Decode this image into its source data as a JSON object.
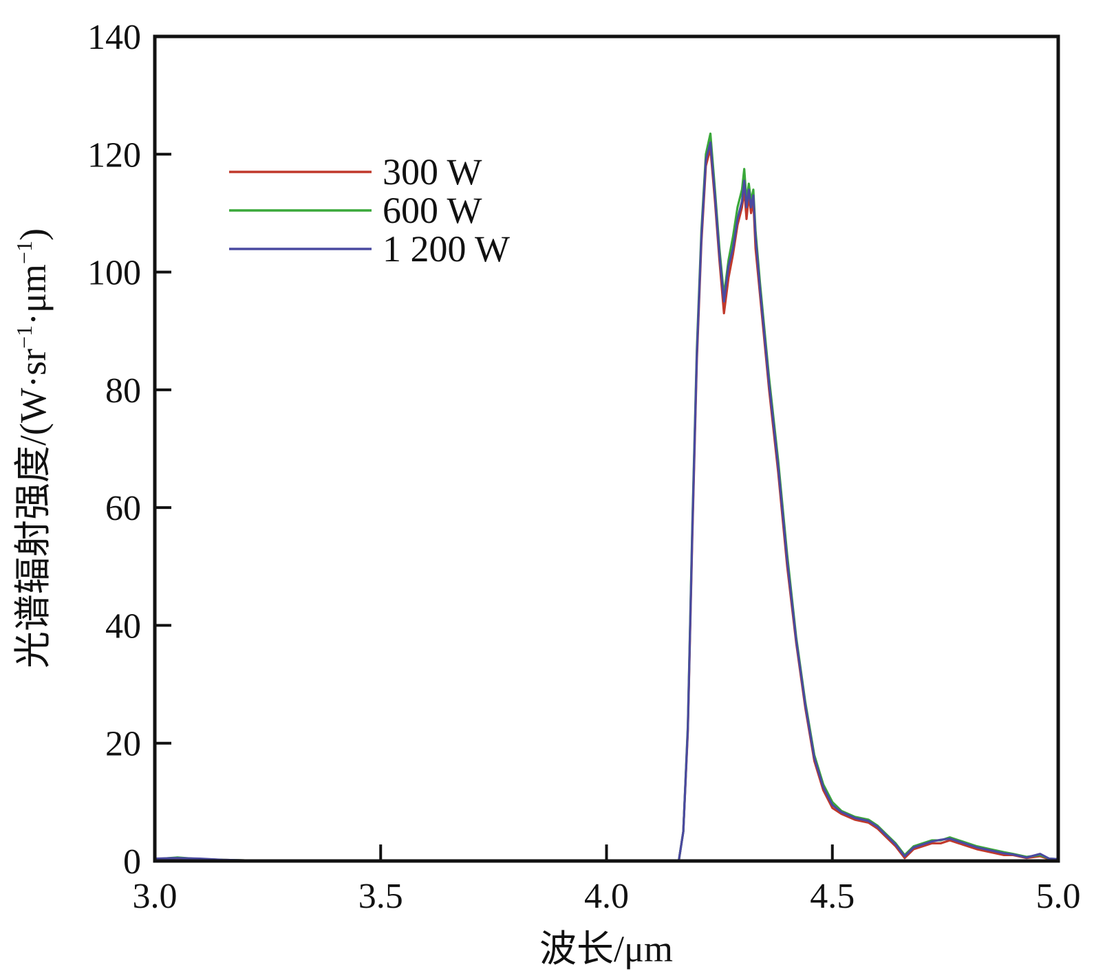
{
  "chart_data": {
    "type": "line",
    "title": "",
    "xlabel": "波长/μm",
    "ylabel": {
      "prefix": "光谱辐射强度/(W·sr",
      "sup1": "−1",
      "mid": "·μm",
      "sup2": "−1",
      "suffix": ")"
    },
    "xlim": [
      3.0,
      5.0
    ],
    "ylim": [
      0,
      140
    ],
    "xticks": [
      3.0,
      3.5,
      4.0,
      4.5,
      5.0
    ],
    "xtick_labels": [
      "3.0",
      "3.5",
      "4.0",
      "4.5",
      "5.0"
    ],
    "yticks": [
      0,
      20,
      40,
      60,
      80,
      100,
      120,
      140
    ],
    "ytick_labels": [
      "0",
      "20",
      "40",
      "60",
      "80",
      "100",
      "120",
      "140"
    ],
    "grid": false,
    "legend": {
      "position": "top-left"
    },
    "series": [
      {
        "name": "300 W",
        "color": "#c0392b",
        "points": [
          [
            3.0,
            0.3
          ],
          [
            3.05,
            0.5
          ],
          [
            3.1,
            0.3
          ],
          [
            3.15,
            0.2
          ],
          [
            3.2,
            0.1
          ],
          [
            3.5,
            0.0
          ],
          [
            4.0,
            0.0
          ],
          [
            4.16,
            0.0
          ],
          [
            4.17,
            5
          ],
          [
            4.18,
            22
          ],
          [
            4.19,
            55
          ],
          [
            4.2,
            85
          ],
          [
            4.21,
            105
          ],
          [
            4.22,
            118
          ],
          [
            4.23,
            121
          ],
          [
            4.24,
            112
          ],
          [
            4.25,
            102
          ],
          [
            4.26,
            93
          ],
          [
            4.27,
            99
          ],
          [
            4.28,
            103
          ],
          [
            4.29,
            108
          ],
          [
            4.3,
            111
          ],
          [
            4.305,
            114
          ],
          [
            4.31,
            109
          ],
          [
            4.315,
            113
          ],
          [
            4.32,
            110
          ],
          [
            4.325,
            112
          ],
          [
            4.33,
            104
          ],
          [
            4.34,
            96
          ],
          [
            4.36,
            80
          ],
          [
            4.38,
            66
          ],
          [
            4.4,
            50
          ],
          [
            4.42,
            37
          ],
          [
            4.44,
            26
          ],
          [
            4.46,
            17
          ],
          [
            4.48,
            12
          ],
          [
            4.5,
            9
          ],
          [
            4.52,
            8
          ],
          [
            4.55,
            7
          ],
          [
            4.58,
            6.5
          ],
          [
            4.6,
            5.5
          ],
          [
            4.62,
            4
          ],
          [
            4.64,
            2.5
          ],
          [
            4.66,
            0.5
          ],
          [
            4.68,
            2
          ],
          [
            4.7,
            2.5
          ],
          [
            4.72,
            3
          ],
          [
            4.74,
            3
          ],
          [
            4.76,
            3.5
          ],
          [
            4.78,
            3
          ],
          [
            4.8,
            2.5
          ],
          [
            4.82,
            2
          ],
          [
            4.85,
            1.5
          ],
          [
            4.88,
            1
          ],
          [
            4.9,
            1
          ],
          [
            4.93,
            0.5
          ],
          [
            4.96,
            0.8
          ],
          [
            4.98,
            0.3
          ],
          [
            5.0,
            0.2
          ]
        ]
      },
      {
        "name": "600 W",
        "color": "#3aa83a",
        "points": [
          [
            3.0,
            0.3
          ],
          [
            3.05,
            0.6
          ],
          [
            3.1,
            0.3
          ],
          [
            3.15,
            0.2
          ],
          [
            3.2,
            0.1
          ],
          [
            3.5,
            0.0
          ],
          [
            4.0,
            0.0
          ],
          [
            4.16,
            0.0
          ],
          [
            4.17,
            5
          ],
          [
            4.18,
            23
          ],
          [
            4.19,
            57
          ],
          [
            4.2,
            87
          ],
          [
            4.21,
            107
          ],
          [
            4.22,
            120
          ],
          [
            4.23,
            123.5
          ],
          [
            4.24,
            114
          ],
          [
            4.25,
            104
          ],
          [
            4.26,
            96
          ],
          [
            4.27,
            102
          ],
          [
            4.28,
            106
          ],
          [
            4.29,
            111
          ],
          [
            4.3,
            114
          ],
          [
            4.305,
            117.5
          ],
          [
            4.31,
            112
          ],
          [
            4.315,
            115
          ],
          [
            4.32,
            112
          ],
          [
            4.325,
            114
          ],
          [
            4.33,
            107
          ],
          [
            4.34,
            98
          ],
          [
            4.36,
            82
          ],
          [
            4.38,
            68
          ],
          [
            4.4,
            52
          ],
          [
            4.42,
            38
          ],
          [
            4.44,
            27
          ],
          [
            4.46,
            18
          ],
          [
            4.48,
            13
          ],
          [
            4.5,
            10
          ],
          [
            4.52,
            8.5
          ],
          [
            4.55,
            7.5
          ],
          [
            4.58,
            7
          ],
          [
            4.6,
            6
          ],
          [
            4.62,
            4.5
          ],
          [
            4.64,
            3
          ],
          [
            4.66,
            1
          ],
          [
            4.68,
            2.5
          ],
          [
            4.7,
            3
          ],
          [
            4.72,
            3.5
          ],
          [
            4.74,
            3.5
          ],
          [
            4.76,
            4
          ],
          [
            4.78,
            3.5
          ],
          [
            4.8,
            3
          ],
          [
            4.82,
            2.5
          ],
          [
            4.85,
            2
          ],
          [
            4.88,
            1.5
          ],
          [
            4.9,
            1.2
          ],
          [
            4.93,
            0.7
          ],
          [
            4.96,
            1
          ],
          [
            4.98,
            0.4
          ],
          [
            5.0,
            0.3
          ]
        ]
      },
      {
        "name": "1 200 W",
        "color": "#4a4aa0",
        "points": [
          [
            3.0,
            0.4
          ],
          [
            3.05,
            0.5
          ],
          [
            3.1,
            0.4
          ],
          [
            3.15,
            0.2
          ],
          [
            3.2,
            0.1
          ],
          [
            3.5,
            0.0
          ],
          [
            4.0,
            0.0
          ],
          [
            4.16,
            0.0
          ],
          [
            4.17,
            5
          ],
          [
            4.18,
            22.5
          ],
          [
            4.19,
            56
          ],
          [
            4.2,
            86
          ],
          [
            4.21,
            106
          ],
          [
            4.22,
            119
          ],
          [
            4.23,
            122
          ],
          [
            4.24,
            113
          ],
          [
            4.25,
            103
          ],
          [
            4.26,
            95
          ],
          [
            4.27,
            101
          ],
          [
            4.28,
            104
          ],
          [
            4.29,
            109
          ],
          [
            4.3,
            112
          ],
          [
            4.305,
            115.5
          ],
          [
            4.31,
            111
          ],
          [
            4.315,
            114
          ],
          [
            4.32,
            111
          ],
          [
            4.325,
            113
          ],
          [
            4.33,
            106
          ],
          [
            4.34,
            97
          ],
          [
            4.36,
            81
          ],
          [
            4.38,
            67
          ],
          [
            4.4,
            51
          ],
          [
            4.42,
            37.5
          ],
          [
            4.44,
            26.5
          ],
          [
            4.46,
            17.5
          ],
          [
            4.48,
            12.5
          ],
          [
            4.5,
            9.5
          ],
          [
            4.52,
            8.3
          ],
          [
            4.55,
            7.3
          ],
          [
            4.58,
            6.8
          ],
          [
            4.6,
            5.8
          ],
          [
            4.62,
            4.3
          ],
          [
            4.64,
            2.8
          ],
          [
            4.66,
            0.8
          ],
          [
            4.68,
            2.3
          ],
          [
            4.7,
            2.8
          ],
          [
            4.72,
            3.3
          ],
          [
            4.74,
            3.6
          ],
          [
            4.76,
            3.8
          ],
          [
            4.78,
            3.3
          ],
          [
            4.8,
            2.8
          ],
          [
            4.82,
            2.3
          ],
          [
            4.85,
            1.8
          ],
          [
            4.88,
            1.3
          ],
          [
            4.9,
            1.1
          ],
          [
            4.93,
            0.6
          ],
          [
            4.96,
            1.2
          ],
          [
            4.98,
            0.4
          ],
          [
            5.0,
            0.3
          ]
        ]
      }
    ]
  }
}
